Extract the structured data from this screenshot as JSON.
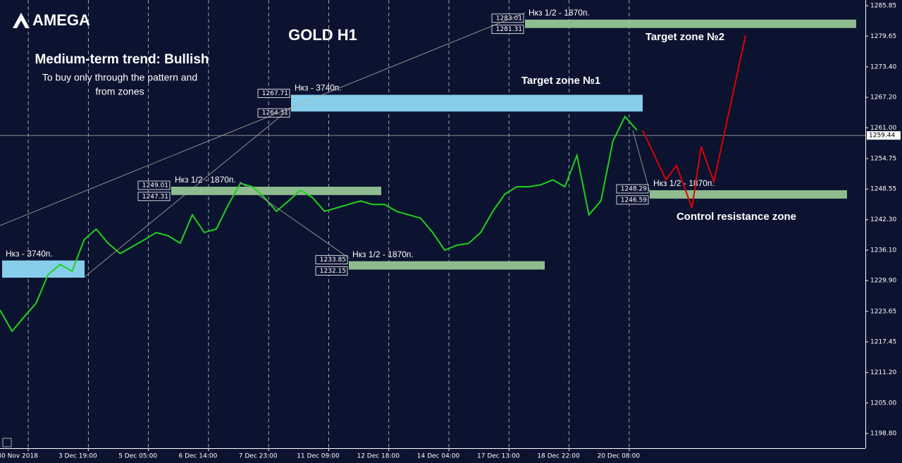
{
  "logo": "AMEGA",
  "chart_data": {
    "type": "line",
    "title": "GOLD H1",
    "trend": "Medium-term trend: Bullish",
    "note": [
      "To buy only through the pattern  and",
      "from zones"
    ],
    "annotations": [
      "Target zone №1",
      "Target zone №2",
      "Control resistance zone"
    ],
    "color": "#1fd11f",
    "ylim": [
      1195.8,
      1287.0
    ],
    "xlim": [
      0,
      72
    ],
    "yticks": [
      1285.85,
      1279.65,
      {
        "value": 1273.4,
        "label": "1273.40"
      },
      {
        "value": 1267.2,
        "label": "1267.20"
      },
      {
        "value": 1261.0,
        "label": "1261.00"
      },
      1254.75,
      1248.55,
      {
        "value": 1242.3,
        "label": "1242.30"
      },
      {
        "value": 1236.1,
        "label": "1236.10"
      },
      {
        "value": 1229.9,
        "label": "1229.90"
      },
      1223.65,
      1217.45,
      {
        "value": 1211.2,
        "label": "1211.20"
      },
      {
        "value": 1205.0,
        "label": "1205.00"
      },
      {
        "value": 1198.8,
        "label": "1198.80"
      }
    ],
    "xticks": [
      {
        "value": 2.35,
        "label": "30 Nov 2018"
      },
      {
        "value": 7.35,
        "label": "3 Dec 19:00"
      },
      {
        "value": 12.35,
        "label": "5 Dec 05:00"
      },
      {
        "value": 17.35,
        "label": "6 Dec 14:00"
      },
      {
        "value": 22.35,
        "label": "7 Dec 23:00"
      },
      {
        "value": 27.35,
        "label": "11 Dec 09:00"
      },
      {
        "value": 32.35,
        "label": "12 Dec 18:00"
      },
      {
        "value": 37.35,
        "label": "14 Dec 04:00"
      },
      {
        "value": 42.35,
        "label": "17 Dec 13:00"
      },
      {
        "value": 47.35,
        "label": "18 Dec 22:00"
      },
      {
        "value": 52.35,
        "label": "20 Dec 08:00"
      }
    ],
    "grid": true,
    "values": [
      1223.9,
      1219.6,
      1222.5,
      1225.3,
      1231.1,
      1233.2,
      1231.8,
      1238.2,
      1240.4,
      1237.5,
      1235.4,
      1236.8,
      1238.2,
      1239.7,
      1239.0,
      1237.5,
      1243.3,
      1239.7,
      1240.4,
      1245.4,
      1249.7,
      1249.0,
      1246.8,
      1244.0,
      1246.1,
      1248.3,
      1246.8,
      1244.0,
      1244.7,
      1245.4,
      1246.1,
      1245.4,
      1245.4,
      1244.0,
      1243.3,
      1242.6,
      1239.7,
      1236.1,
      1237.1,
      1237.5,
      1239.7,
      1244.0,
      1247.5,
      1249.0,
      1249.0,
      1249.4,
      1250.4,
      1249.0,
      1255.4,
      1243.3,
      1246.1,
      1258.3,
      1263.3,
      1260.5
    ],
    "current": 1259.44,
    "zones": [
      {
        "top": 1267.71,
        "bottom": 1264.31,
        "label": "Нкз - 3740п.",
        "color": "#87ceeb",
        "price_labels": true
      },
      {
        "top": 1283.01,
        "bottom": 1281.31,
        "label": "Нкз 1/2 - 1870п.",
        "color": "#8fbc8f",
        "price_labels": true
      },
      {
        "top": 1249.01,
        "bottom": 1247.31,
        "label": "Нкз 1/2 - 1870п.",
        "color": "#8fbc8f",
        "price_labels": true
      },
      {
        "top": 1233.85,
        "bottom": 1232.15,
        "label": "Нкз 1/2 - 1870п.",
        "color": "#8fbc8f",
        "price_labels": true
      },
      {
        "top": 1248.29,
        "bottom": 1246.59,
        "label": "Нкз 1/2 - 1870п.",
        "color": "#8fbc8f",
        "price_labels": true
      },
      {
        "top": 1234.0,
        "bottom": 1230.5,
        "label": "Нкз - 3740п.",
        "color": "#87ceeb",
        "price_labels": false
      }
    ]
  }
}
